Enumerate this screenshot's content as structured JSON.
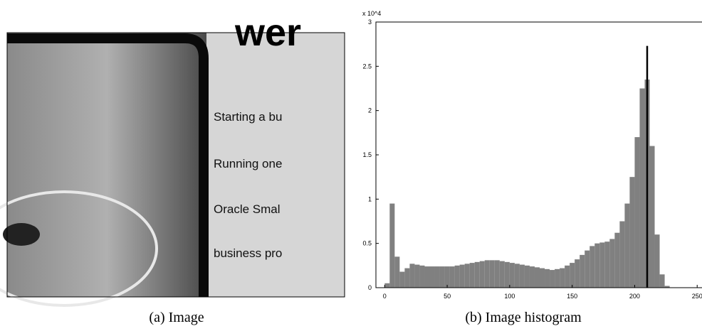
{
  "image_panel": {
    "texts": [
      "wer",
      "Starting a bu",
      "Running one",
      "Oracle Smal",
      "business pro"
    ],
    "caption": "(a) Image"
  },
  "chart_data": {
    "type": "histogram",
    "caption": "(b) Image histogram",
    "y_scale_label": "x 10^4",
    "bins": [
      0,
      4,
      8,
      12,
      16,
      20,
      24,
      28,
      32,
      36,
      40,
      44,
      48,
      52,
      56,
      60,
      64,
      68,
      72,
      76,
      80,
      84,
      88,
      92,
      96,
      100,
      104,
      108,
      112,
      116,
      120,
      124,
      128,
      132,
      136,
      140,
      144,
      148,
      152,
      156,
      160,
      164,
      168,
      172,
      176,
      180,
      184,
      188,
      192,
      196,
      200,
      204,
      208,
      212,
      216,
      220,
      224,
      228
    ],
    "counts": [
      0.05,
      0.95,
      0.35,
      0.18,
      0.22,
      0.27,
      0.26,
      0.25,
      0.24,
      0.24,
      0.24,
      0.24,
      0.24,
      0.24,
      0.25,
      0.26,
      0.27,
      0.28,
      0.29,
      0.3,
      0.31,
      0.31,
      0.31,
      0.3,
      0.29,
      0.28,
      0.27,
      0.26,
      0.25,
      0.24,
      0.23,
      0.22,
      0.21,
      0.2,
      0.21,
      0.22,
      0.25,
      0.28,
      0.32,
      0.37,
      0.42,
      0.47,
      0.5,
      0.51,
      0.52,
      0.55,
      0.62,
      0.75,
      0.95,
      1.25,
      1.7,
      2.25,
      2.35,
      1.6,
      0.6,
      0.15,
      0.02
    ],
    "color": "#808080",
    "vline": {
      "x": 210,
      "top": 2.73,
      "color": "#000000"
    },
    "xlim": [
      -7,
      255
    ],
    "ylim": [
      0,
      3
    ],
    "xticks": [
      0,
      50,
      100,
      150,
      200,
      250
    ],
    "yticks": [
      0,
      0.5,
      1,
      1.5,
      2,
      2.5,
      3
    ]
  }
}
